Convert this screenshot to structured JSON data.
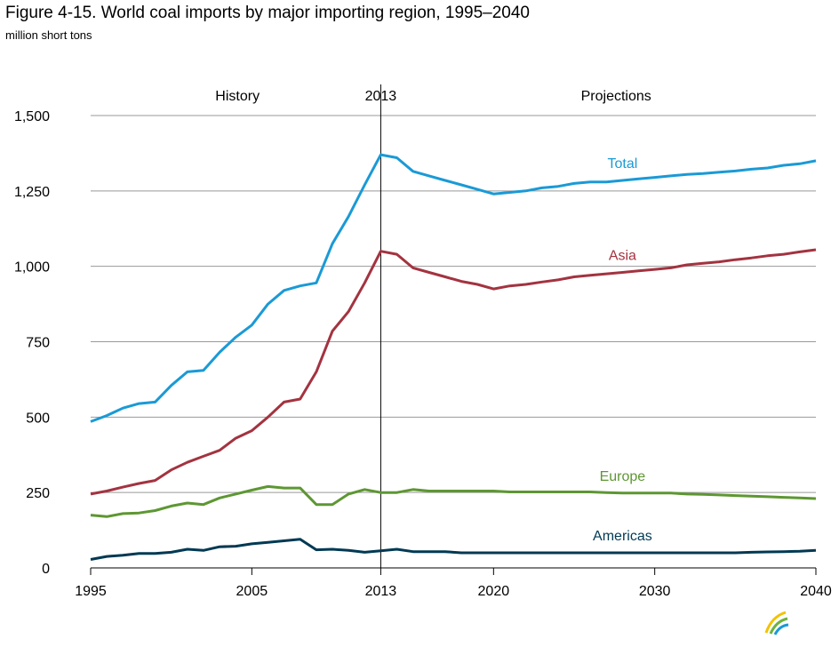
{
  "chart_data": {
    "type": "line",
    "title": "Figure 4-15. World coal imports by major importing region, 1995–2040",
    "subtitle": "million short tons",
    "xlim": [
      1995,
      2040
    ],
    "ylim": [
      0,
      1500
    ],
    "yticks": [
      0,
      250,
      500,
      750,
      1000,
      1250,
      1500
    ],
    "ytick_labels": [
      "0",
      "250",
      "500",
      "750",
      "1,000",
      "1,250",
      "1,500"
    ],
    "xticks": [
      1995,
      2005,
      2013,
      2020,
      2030,
      2040
    ],
    "xtick_labels": [
      "1995",
      "2005",
      "2013",
      "2020",
      "2030",
      "2040"
    ],
    "grid": "horizontal",
    "divider": {
      "year": 2013,
      "label": "2013"
    },
    "region_labels": {
      "history": "History",
      "projections": "Projections"
    },
    "years": [
      1995,
      1996,
      1997,
      1998,
      1999,
      2000,
      2001,
      2002,
      2003,
      2004,
      2005,
      2006,
      2007,
      2008,
      2009,
      2010,
      2011,
      2012,
      2013,
      2014,
      2015,
      2016,
      2017,
      2018,
      2019,
      2020,
      2021,
      2022,
      2023,
      2024,
      2025,
      2026,
      2027,
      2028,
      2029,
      2030,
      2031,
      2032,
      2033,
      2034,
      2035,
      2036,
      2037,
      2038,
      2039,
      2040
    ],
    "series": [
      {
        "name": "Total",
        "color": "#1a9ad6",
        "values": [
          485,
          505,
          530,
          545,
          550,
          605,
          650,
          655,
          715,
          765,
          805,
          875,
          920,
          935,
          945,
          1075,
          1165,
          1270,
          1370,
          1360,
          1315,
          1300,
          1285,
          1270,
          1255,
          1240,
          1245,
          1250,
          1260,
          1265,
          1275,
          1280,
          1280,
          1285,
          1290,
          1295,
          1300,
          1305,
          1308,
          1312,
          1316,
          1322,
          1326,
          1335,
          1340,
          1350
        ]
      },
      {
        "name": "Asia",
        "color": "#a33340",
        "values": [
          245,
          255,
          268,
          280,
          290,
          325,
          350,
          370,
          390,
          430,
          455,
          500,
          550,
          560,
          650,
          785,
          850,
          945,
          1050,
          1040,
          995,
          980,
          965,
          950,
          940,
          925,
          935,
          940,
          948,
          955,
          965,
          970,
          975,
          980,
          985,
          990,
          995,
          1005,
          1010,
          1015,
          1022,
          1028,
          1035,
          1040,
          1048,
          1055
        ]
      },
      {
        "name": "Europe",
        "color": "#5d9732",
        "values": [
          175,
          170,
          180,
          182,
          190,
          205,
          215,
          210,
          232,
          245,
          258,
          270,
          265,
          265,
          210,
          210,
          245,
          260,
          250,
          250,
          260,
          255,
          255,
          255,
          255,
          255,
          252,
          252,
          252,
          252,
          252,
          252,
          250,
          248,
          248,
          248,
          248,
          245,
          244,
          242,
          240,
          238,
          236,
          234,
          232,
          230
        ]
      },
      {
        "name": "Americas",
        "color": "#003953",
        "values": [
          28,
          38,
          42,
          48,
          48,
          52,
          62,
          58,
          70,
          72,
          80,
          85,
          90,
          95,
          60,
          62,
          58,
          52,
          57,
          62,
          54,
          54,
          54,
          50,
          50,
          50,
          50,
          50,
          50,
          50,
          50,
          50,
          50,
          50,
          50,
          50,
          50,
          50,
          50,
          50,
          50,
          52,
          53,
          54,
          55,
          58
        ]
      }
    ],
    "series_label_years": {
      "Total": 2028,
      "Asia": 2028,
      "Europe": 2028,
      "Americas": 2028
    }
  }
}
